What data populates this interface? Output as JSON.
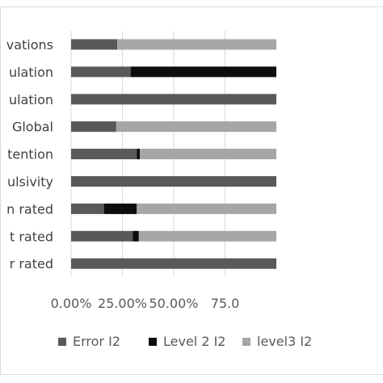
{
  "chart_data": {
    "type": "bar",
    "orientation": "horizontal",
    "stacked": true,
    "categories": [
      "vations",
      "ulation",
      "ulation",
      "Global",
      "tention",
      "ulsivity",
      "n rated",
      "t rated",
      "r rated"
    ],
    "series": [
      {
        "name": "Error I2",
        "color": "#595959",
        "values": [
          22.5,
          29,
          100,
          22,
          32,
          100,
          16,
          30,
          100
        ]
      },
      {
        "name": "Level 2 I2",
        "color": "#0d0d0d",
        "values": [
          0,
          71,
          0,
          0,
          1.5,
          0,
          16,
          3,
          0
        ]
      },
      {
        "name": "level3 I2",
        "color": "#a6a6a6",
        "values": [
          77.5,
          0,
          0,
          78,
          66.5,
          0,
          68,
          67,
          0
        ]
      }
    ],
    "xlim": [
      0,
      100
    ],
    "xticks": [
      0,
      25,
      50,
      75
    ],
    "xtick_labels": [
      "0.00%",
      "25.00%",
      "50.00%",
      "75.0"
    ],
    "grid": true,
    "legend": "bottom"
  }
}
